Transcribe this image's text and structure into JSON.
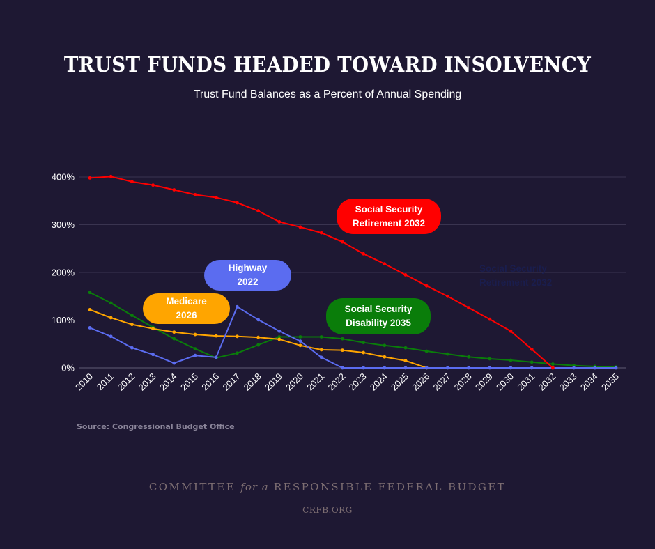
{
  "chart_data": {
    "type": "line",
    "title": "TRUST FUNDS HEADED TOWARD INSOLVENCY",
    "subtitle": "Trust Fund Balances as a Percent of Annual Spending",
    "xlabel": "",
    "ylabel": "",
    "ylim": [
      0,
      400
    ],
    "yticks": [
      {
        "value": 0,
        "label": "0%"
      },
      {
        "value": 100,
        "label": "100%"
      },
      {
        "value": 200,
        "label": "200%"
      },
      {
        "value": 300,
        "label": "300%"
      },
      {
        "value": 400,
        "label": "400%"
      }
    ],
    "grid": true,
    "legend": "none",
    "x": [
      "2010",
      "2011",
      "2012",
      "2013",
      "2014",
      "2015",
      "2016",
      "2017",
      "2018",
      "2019",
      "2020",
      "2021",
      "2022",
      "2023",
      "2024",
      "2025",
      "2026",
      "2027",
      "2028",
      "2029",
      "2030",
      "2031",
      "2032",
      "2033",
      "2034",
      "2035"
    ],
    "series": [
      {
        "name": "Social Security Disability",
        "color": "#0a7d0a",
        "values": [
          158,
          136,
          110,
          85,
          61,
          40,
          21,
          31,
          48,
          65,
          65,
          65,
          61,
          53,
          47,
          42,
          35,
          29,
          23,
          19,
          16,
          12,
          8,
          5,
          3,
          2
        ]
      },
      {
        "name": "Medicare",
        "color": "#ffa500",
        "values": [
          122,
          105,
          91,
          82,
          75,
          70,
          67,
          66,
          64,
          60,
          47,
          38,
          37,
          32,
          23,
          15,
          0,
          null,
          null,
          null,
          null,
          null,
          null,
          null,
          null,
          null
        ]
      },
      {
        "name": "Highway",
        "color": "#5b6cf0",
        "values": [
          84,
          66,
          42,
          28,
          10,
          26,
          22,
          128,
          101,
          77,
          56,
          22,
          0,
          0,
          0,
          0,
          0,
          0,
          0,
          0,
          0,
          0,
          0,
          0,
          0,
          0
        ]
      },
      {
        "name": "Social Security Retirement",
        "color": "#ff0000",
        "values": [
          398,
          401,
          390,
          383,
          373,
          363,
          357,
          346,
          329,
          306,
          295,
          283,
          264,
          239,
          218,
          195,
          172,
          150,
          126,
          102,
          77,
          39,
          0,
          null,
          null,
          null
        ]
      }
    ],
    "annotations": [
      {
        "id": "ssr",
        "lines": [
          "Social Security",
          "Retirement 2032"
        ],
        "color": "#ff0000"
      },
      {
        "id": "hwy",
        "lines": [
          "Highway",
          "2022"
        ],
        "color": "#5b6cf0"
      },
      {
        "id": "med",
        "lines": [
          "Medicare",
          "2026"
        ],
        "color": "#ffa500"
      },
      {
        "id": "ssdi",
        "lines": [
          "Social Security",
          "Disability 2035"
        ],
        "color": "#0a7d0a"
      }
    ],
    "ghost_annotation": [
      "Social Security",
      "Retirement 2032"
    ]
  },
  "footer": {
    "source": "Source: Congressional Budget Office",
    "org_part1": "COMMITTEE ",
    "org_italic": "for a",
    "org_part2": " RESPONSIBLE FEDERAL BUDGET",
    "url": "CRFB.ORG"
  },
  "colors": {
    "background": "#1e1833",
    "grid": "#3a3450"
  }
}
